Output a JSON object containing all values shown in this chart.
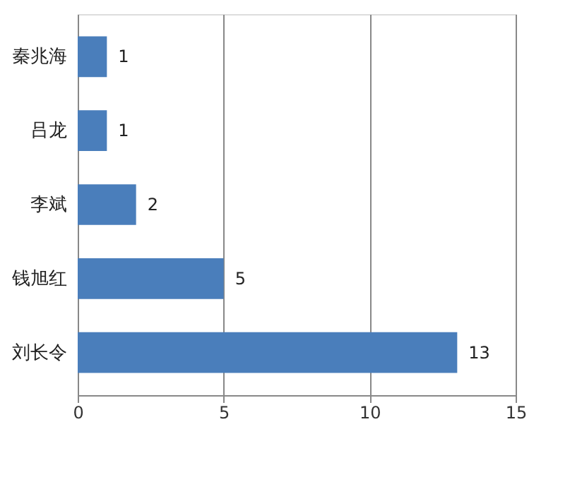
{
  "chart_data": {
    "type": "bar",
    "orientation": "horizontal",
    "categories": [
      "秦兆海",
      "吕龙",
      "李斌",
      "钱旭红",
      "刘长令"
    ],
    "values": [
      1,
      1,
      2,
      5,
      13
    ],
    "color": "#4a7ebb",
    "xlim": [
      0,
      15
    ],
    "xticks": [
      0,
      5,
      10,
      15
    ],
    "grid": "x",
    "data_labels": true
  }
}
